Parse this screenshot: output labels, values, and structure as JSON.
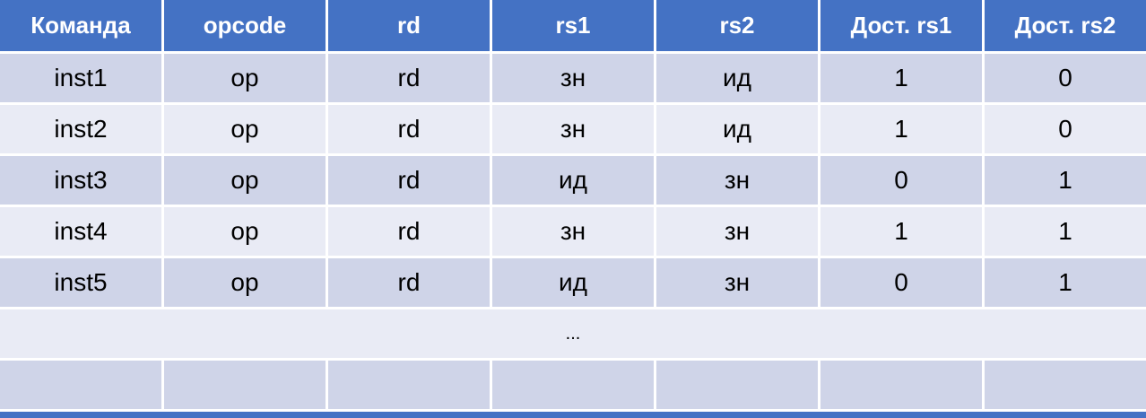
{
  "table": {
    "headers": [
      "Команда",
      "opcode",
      "rd",
      "rs1",
      "rs2",
      "Дост. rs1",
      "Дост. rs2"
    ],
    "rows": [
      {
        "cells": [
          "inst1",
          "op",
          "rd",
          "зн",
          "ид",
          "1",
          "0"
        ]
      },
      {
        "cells": [
          "inst2",
          "op",
          "rd",
          "зн",
          "ид",
          "1",
          "0"
        ]
      },
      {
        "cells": [
          "inst3",
          "op",
          "rd",
          "ид",
          "зн",
          "0",
          "1"
        ]
      },
      {
        "cells": [
          "inst4",
          "op",
          "rd",
          "зн",
          "зн",
          "1",
          "1"
        ]
      },
      {
        "cells": [
          "inst5",
          "op",
          "rd",
          "ид",
          "зн",
          "0",
          "1"
        ]
      }
    ],
    "ellipsis": "...",
    "colors": {
      "header_bg": "#4472C4",
      "header_text": "#FFFFFF",
      "band_dark": "#CFD4E8",
      "band_light": "#E9EBF5",
      "grid_lines": "#FFFFFF",
      "cell_text": "#000000",
      "bottom_bar": "#4472C4"
    }
  }
}
